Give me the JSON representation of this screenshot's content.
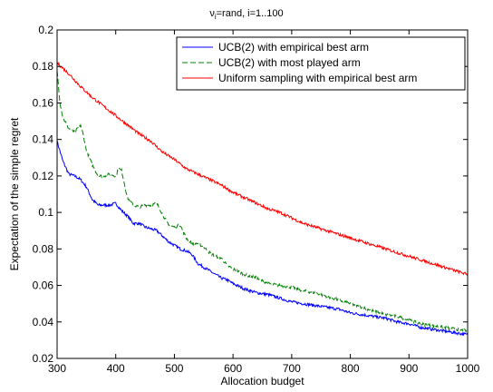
{
  "chart_data": {
    "type": "line",
    "title": "ν",
    "title_sub": "i",
    "title_rest": "=rand, i=1..100",
    "xlabel": "Allocation budget",
    "ylabel": "Expectation of the simple regret",
    "xlim": [
      300,
      1000
    ],
    "ylim": [
      0.02,
      0.2
    ],
    "xticks": [
      300,
      400,
      500,
      600,
      700,
      800,
      900,
      1000
    ],
    "yticks": [
      0.02,
      0.04,
      0.06,
      0.08,
      0.1,
      0.12,
      0.14,
      0.16,
      0.18,
      0.2
    ],
    "ytick_labels": [
      "0.02",
      "0.04",
      "0.06",
      "0.08",
      "0.1",
      "0.12",
      "0.14",
      "0.16",
      "0.18",
      "0.2"
    ],
    "grid": false,
    "legend_position": "top-right",
    "series": [
      {
        "name": "UCB(2) with empirical best arm",
        "color": "#0000ff",
        "style": "solid",
        "x": [
          300,
          310,
          320,
          330,
          340,
          350,
          360,
          370,
          380,
          390,
          400,
          410,
          420,
          430,
          440,
          450,
          460,
          470,
          480,
          490,
          500,
          510,
          520,
          530,
          540,
          550,
          560,
          570,
          580,
          590,
          600,
          620,
          640,
          660,
          680,
          700,
          720,
          740,
          760,
          780,
          800,
          820,
          840,
          860,
          880,
          900,
          920,
          940,
          960,
          980,
          1000
        ],
        "y": [
          0.139,
          0.128,
          0.121,
          0.12,
          0.118,
          0.114,
          0.107,
          0.104,
          0.104,
          0.104,
          0.105,
          0.101,
          0.098,
          0.094,
          0.094,
          0.092,
          0.091,
          0.09,
          0.087,
          0.084,
          0.082,
          0.08,
          0.079,
          0.077,
          0.072,
          0.07,
          0.068,
          0.066,
          0.064,
          0.063,
          0.061,
          0.058,
          0.056,
          0.055,
          0.053,
          0.051,
          0.05,
          0.049,
          0.048,
          0.047,
          0.045,
          0.044,
          0.043,
          0.042,
          0.04,
          0.039,
          0.037,
          0.036,
          0.035,
          0.034,
          0.033
        ]
      },
      {
        "name": "UCB(2) with most played arm",
        "color": "#008000",
        "style": "dashed",
        "x": [
          300,
          305,
          310,
          320,
          330,
          340,
          345,
          350,
          360,
          370,
          380,
          390,
          400,
          405,
          410,
          420,
          430,
          440,
          450,
          460,
          470,
          480,
          490,
          500,
          510,
          520,
          530,
          540,
          550,
          560,
          570,
          580,
          590,
          600,
          620,
          640,
          660,
          680,
          700,
          720,
          740,
          760,
          780,
          800,
          820,
          840,
          860,
          880,
          900,
          920,
          940,
          960,
          980,
          1000
        ],
        "y": [
          0.178,
          0.16,
          0.152,
          0.146,
          0.144,
          0.148,
          0.142,
          0.134,
          0.126,
          0.12,
          0.12,
          0.121,
          0.12,
          0.124,
          0.123,
          0.108,
          0.104,
          0.103,
          0.104,
          0.104,
          0.105,
          0.099,
          0.093,
          0.092,
          0.093,
          0.086,
          0.083,
          0.083,
          0.081,
          0.078,
          0.076,
          0.075,
          0.071,
          0.069,
          0.066,
          0.064,
          0.061,
          0.06,
          0.059,
          0.057,
          0.056,
          0.054,
          0.052,
          0.05,
          0.048,
          0.046,
          0.044,
          0.043,
          0.041,
          0.039,
          0.038,
          0.037,
          0.036,
          0.035
        ]
      },
      {
        "name": "Uniform sampling with empirical best arm",
        "color": "#ff0000",
        "style": "solid",
        "x": [
          300,
          320,
          340,
          360,
          380,
          400,
          420,
          440,
          460,
          480,
          500,
          520,
          540,
          560,
          580,
          600,
          620,
          640,
          660,
          680,
          700,
          720,
          740,
          760,
          780,
          800,
          820,
          840,
          860,
          880,
          900,
          920,
          940,
          960,
          980,
          1000
        ],
        "y": [
          0.182,
          0.176,
          0.169,
          0.163,
          0.158,
          0.153,
          0.148,
          0.143,
          0.139,
          0.133,
          0.129,
          0.124,
          0.121,
          0.118,
          0.115,
          0.111,
          0.108,
          0.105,
          0.102,
          0.1,
          0.097,
          0.094,
          0.092,
          0.09,
          0.088,
          0.086,
          0.084,
          0.082,
          0.08,
          0.078,
          0.076,
          0.074,
          0.072,
          0.07,
          0.068,
          0.066
        ]
      }
    ]
  }
}
